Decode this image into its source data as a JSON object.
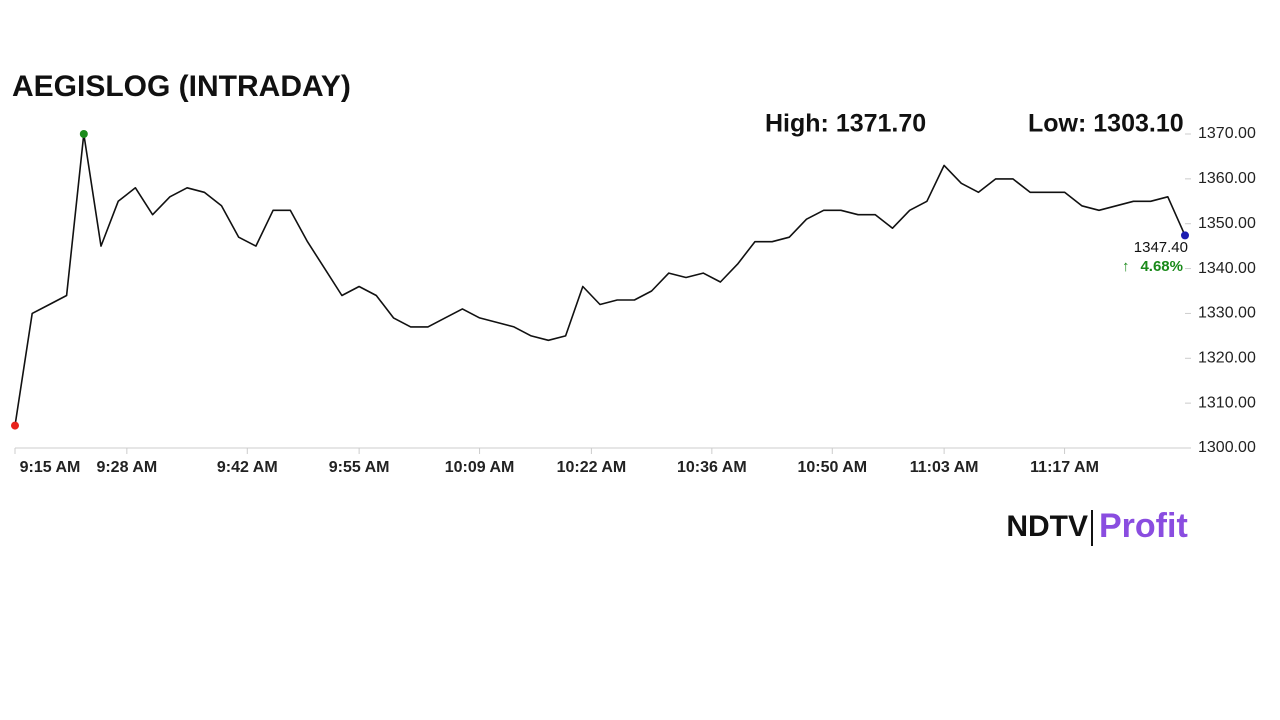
{
  "chart_data": {
    "type": "line",
    "title": "AEGISLOG (INTRADAY)",
    "annotations": {
      "high": "High: 1371.70",
      "low": "Low: 1303.10",
      "last": "1347.40",
      "change": "4.68%"
    },
    "x": [
      "9:15 AM",
      "9:17 AM",
      "9:19 AM",
      "9:21 AM",
      "9:23 AM",
      "9:25 AM",
      "9:27 AM",
      "9:29 AM",
      "9:31 AM",
      "9:33 AM",
      "9:35 AM",
      "9:37 AM",
      "9:39 AM",
      "9:41 AM",
      "9:43 AM",
      "9:45 AM",
      "9:47 AM",
      "9:49 AM",
      "9:51 AM",
      "9:53 AM",
      "9:55 AM",
      "9:57 AM",
      "9:59 AM",
      "10:01 AM",
      "10:03 AM",
      "10:05 AM",
      "10:07 AM",
      "10:09 AM",
      "10:11 AM",
      "10:13 AM",
      "10:15 AM",
      "10:17 AM",
      "10:19 AM",
      "10:21 AM",
      "10:23 AM",
      "10:25 AM",
      "10:27 AM",
      "10:29 AM",
      "10:31 AM",
      "10:33 AM",
      "10:35 AM",
      "10:37 AM",
      "10:39 AM",
      "10:41 AM",
      "10:43 AM",
      "10:45 AM",
      "10:47 AM",
      "10:49 AM",
      "10:51 AM",
      "10:53 AM",
      "10:55 AM",
      "10:57 AM",
      "10:59 AM",
      "11:01 AM",
      "11:03 AM",
      "11:05 AM",
      "11:07 AM",
      "11:09 AM",
      "11:11 AM",
      "11:13 AM",
      "11:15 AM",
      "11:17 AM",
      "11:19 AM",
      "11:21 AM",
      "11:23 AM",
      "11:25 AM",
      "11:27 AM",
      "11:29 AM",
      "11:31 AM"
    ],
    "series": [
      {
        "color": "#111111",
        "values": [
          1305,
          1330,
          1332,
          1334,
          1370,
          1345,
          1355,
          1358,
          1352,
          1356,
          1358,
          1357,
          1354,
          1347,
          1345,
          1353,
          1353,
          1346,
          1340,
          1334,
          1336,
          1334,
          1329,
          1327,
          1327,
          1329,
          1331,
          1329,
          1328,
          1327,
          1325,
          1324,
          1325,
          1336,
          1332,
          1333,
          1333,
          1335,
          1339,
          1338,
          1339,
          1337,
          1341,
          1346,
          1346,
          1347,
          1351,
          1353,
          1353,
          1352,
          1352,
          1349,
          1353,
          1355,
          1363,
          1359,
          1357,
          1360,
          1360,
          1357,
          1357,
          1357,
          1354,
          1353,
          1354,
          1355,
          1355,
          1356,
          1347.4
        ]
      }
    ],
    "marker_colors": {
      "min": "#e8231c",
      "max": "#1a8a1a",
      "last": "#1c1cb0"
    },
    "change_color": "#1a8a1a",
    "xticks": [
      "9:15 AM",
      "9:28 AM",
      "9:42 AM",
      "9:55 AM",
      "10:09 AM",
      "10:22 AM",
      "10:36 AM",
      "10:50 AM",
      "11:03 AM",
      "11:17 AM"
    ],
    "ylim": [
      1300,
      1370
    ],
    "yticks": [
      {
        "value": 1300,
        "label": "1300.00"
      },
      {
        "value": 1310,
        "label": "1310.00"
      },
      {
        "value": 1320,
        "label": "1320.00"
      },
      {
        "value": 1330,
        "label": "1330.00"
      },
      {
        "value": 1340,
        "label": "1340.00"
      },
      {
        "value": 1350,
        "label": "1350.00"
      },
      {
        "value": 1360,
        "label": "1360.00"
      },
      {
        "value": 1370,
        "label": "1370.00"
      }
    ]
  },
  "logo": {
    "left": "NDTV",
    "right": "Profit"
  }
}
